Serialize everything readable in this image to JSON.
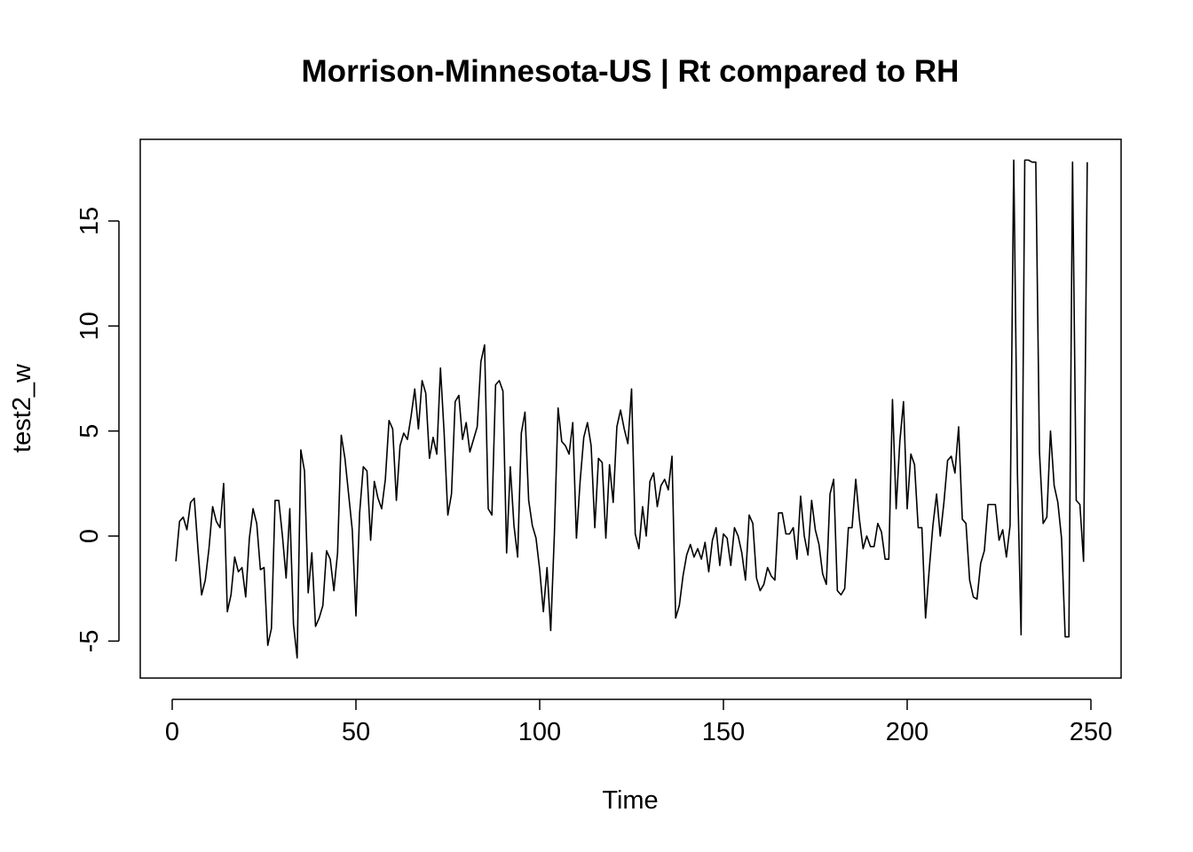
{
  "chart_data": {
    "type": "line",
    "title": "Morrison-Minnesota-US | Rt compared to RH",
    "xlabel": "Time",
    "ylabel": "test2_w",
    "xlim": [
      0,
      250
    ],
    "ylim": [
      -5.8,
      18
    ],
    "x_ticks": [
      0,
      50,
      100,
      150,
      200,
      250
    ],
    "y_ticks": [
      -5,
      0,
      5,
      10,
      15
    ],
    "x_tick_labels": [
      "0",
      "50",
      "100",
      "150",
      "200",
      "250"
    ],
    "y_tick_labels": [
      "-5",
      "0",
      "5",
      "10",
      "15"
    ],
    "grid": false,
    "line_color": "#000000",
    "series": [
      {
        "x_start": 1,
        "x_step": 1,
        "values": [
          -1.2,
          0.7,
          0.9,
          0.3,
          1.6,
          1.8,
          -0.6,
          -2.8,
          -2.1,
          -0.6,
          1.4,
          0.7,
          0.4,
          2.5,
          -3.6,
          -2.8,
          -1.0,
          -1.7,
          -1.5,
          -2.9,
          -0.1,
          1.3,
          0.6,
          -1.6,
          -1.5,
          -5.2,
          -4.4,
          1.7,
          1.7,
          0.0,
          -2.0,
          1.3,
          -4.2,
          -5.8,
          4.1,
          3.1,
          -2.7,
          -0.8,
          -4.3,
          -3.9,
          -3.3,
          -0.7,
          -1.1,
          -2.6,
          -0.8,
          4.8,
          3.7,
          2.0,
          0.3,
          -3.8,
          1.1,
          3.3,
          3.1,
          -0.2,
          2.6,
          1.8,
          1.3,
          2.7,
          5.5,
          5.1,
          1.7,
          4.3,
          4.9,
          4.6,
          5.7,
          7.0,
          5.1,
          7.4,
          6.8,
          3.7,
          4.7,
          3.9,
          8.0,
          4.9,
          1.0,
          2.0,
          6.4,
          6.7,
          4.6,
          5.4,
          4.0,
          4.6,
          5.2,
          8.3,
          9.1,
          1.3,
          1.0,
          7.2,
          7.4,
          6.9,
          -0.8,
          3.3,
          0.5,
          -1.0,
          4.9,
          5.9,
          1.7,
          0.5,
          -0.1,
          -1.6,
          -3.6,
          -1.5,
          -4.5,
          0.1,
          6.1,
          4.5,
          4.3,
          3.9,
          5.4,
          -0.1,
          2.6,
          4.7,
          5.4,
          4.3,
          0.4,
          3.7,
          3.5,
          -0.1,
          3.4,
          1.6,
          5.2,
          6.0,
          5.1,
          4.4,
          7.0,
          0.1,
          -0.6,
          1.4,
          0.0,
          2.6,
          3.0,
          1.4,
          2.4,
          2.7,
          2.2,
          3.8,
          -3.9,
          -3.3,
          -1.9,
          -0.9,
          -0.4,
          -1.0,
          -0.6,
          -1.1,
          -0.3,
          -1.7,
          -0.2,
          0.4,
          -1.4,
          0.1,
          -0.1,
          -1.4,
          0.4,
          0.0,
          -0.8,
          -2.1,
          1.0,
          0.6,
          -2.0,
          -2.6,
          -2.3,
          -1.5,
          -1.9,
          -2.1,
          1.1,
          1.1,
          0.1,
          0.1,
          0.4,
          -1.1,
          1.9,
          0.0,
          -0.9,
          1.7,
          0.3,
          -0.4,
          -1.8,
          -2.3,
          2.0,
          2.7,
          -2.6,
          -2.8,
          -2.5,
          0.4,
          0.4,
          2.7,
          0.8,
          -0.6,
          0.0,
          -0.5,
          -0.5,
          0.6,
          0.2,
          -1.1,
          -1.1,
          6.5,
          1.3,
          4.5,
          6.4,
          1.3,
          3.9,
          3.4,
          0.4,
          0.4,
          -3.9,
          -1.6,
          0.5,
          2.0,
          0.0,
          1.6,
          3.6,
          3.8,
          3.0,
          5.2,
          0.8,
          0.6,
          -2.1,
          -2.9,
          -3.0,
          -1.3,
          -0.7,
          1.5,
          1.5,
          1.5,
          -0.2,
          0.3,
          -1.0,
          0.5,
          17.9,
          3.0,
          -4.7,
          17.9,
          17.9,
          17.8,
          17.8,
          4.0,
          0.6,
          0.9,
          5.0,
          2.4,
          1.6,
          -0.1,
          -4.8,
          -4.8,
          17.8,
          1.7,
          1.5,
          -1.2,
          17.8
        ]
      }
    ]
  }
}
